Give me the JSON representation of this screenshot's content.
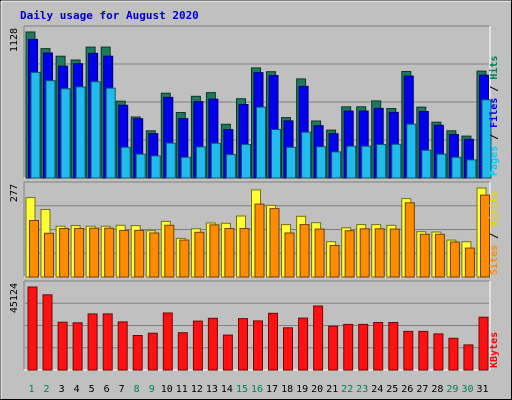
{
  "chart_data": {
    "type": "bar",
    "title": "Daily usage for August 2020",
    "days": [
      "1",
      "2",
      "3",
      "4",
      "5",
      "6",
      "7",
      "8",
      "9",
      "10",
      "11",
      "12",
      "13",
      "14",
      "15",
      "16",
      "17",
      "18",
      "19",
      "20",
      "21",
      "22",
      "23",
      "24",
      "25",
      "26",
      "27",
      "28",
      "29",
      "30",
      "31"
    ],
    "weekend_days": [
      "1",
      "2",
      "8",
      "9",
      "15",
      "16",
      "22",
      "23",
      "29",
      "30"
    ],
    "panels": [
      {
        "name": "hits-files-pages",
        "ymax_label": "1128",
        "ymax": 1128,
        "legend": [
          {
            "label": "Hits",
            "color": "#00805c"
          },
          {
            "label": "Files",
            "color": "#0000ff"
          },
          {
            "label": "Pages",
            "color": "#00ccff"
          }
        ],
        "series": [
          {
            "name": "Hits",
            "color": "#1e7a5c",
            "values": [
              1128,
              1000,
              941,
              912,
              1011,
              1011,
              593,
              471,
              365,
              655,
              506,
              631,
              660,
              415,
              613,
              851,
              821,
              467,
              766,
              440,
              370,
              550,
              550,
              596,
              537,
              823,
              548,
              431,
              365,
              324,
              826
            ]
          },
          {
            "name": "Files",
            "color": "#0000ee",
            "values": [
              1071,
              966,
              864,
              883,
              963,
              941,
              562,
              458,
              343,
              623,
              459,
              590,
              609,
              374,
              568,
              814,
              792,
              441,
              708,
              404,
              342,
              517,
              517,
              538,
              507,
              787,
              514,
              407,
              336,
              299,
              794
            ]
          },
          {
            "name": "Pages",
            "color": "#22bbee",
            "values": [
              816,
              752,
              690,
              704,
              744,
              694,
              237,
              184,
              171,
              270,
              160,
              240,
              268,
              181,
              259,
              547,
              375,
              237,
              354,
              242,
              202,
              246,
              246,
              259,
              260,
              416,
              214,
              184,
              160,
              140,
              604
            ]
          }
        ]
      },
      {
        "name": "visits-sites",
        "ymax_label": "277",
        "ymax": 277,
        "legend": [
          {
            "label": "Visits",
            "color": "#e6d800"
          },
          {
            "label": "Sites",
            "color": "#ff8c00"
          }
        ],
        "series": [
          {
            "name": "Visits",
            "color": "#ffff33",
            "values": [
              247,
              210,
              158,
              160,
              158,
              158,
              161,
              160,
              144,
              173,
              120,
              150,
              168,
              167,
              190,
              271,
              223,
              163,
              189,
              169,
              110,
              153,
              163,
              163,
              161,
              244,
              141,
              140,
              115,
              110,
              277
            ]
          },
          {
            "name": "Sites",
            "color": "#ff8c00",
            "values": [
              176,
              136,
              151,
              151,
              152,
              152,
              145,
              145,
              137,
              161,
              115,
              139,
              162,
              151,
              151,
              227,
              213,
              137,
              163,
              149,
              98,
              144,
              150,
              150,
              149,
              231,
              133,
              133,
              109,
              90,
              255
            ]
          }
        ]
      },
      {
        "name": "kbytes",
        "ymax_label": "45124",
        "ymax": 45124,
        "legend": [
          {
            "label": "KBytes",
            "color": "#ff0000"
          }
        ],
        "series": [
          {
            "name": "KBytes",
            "color": "#ff1111",
            "values": [
              45124,
              40875,
              25993,
              25682,
              30474,
              30474,
              26133,
              18770,
              20023,
              31004,
              20285,
              26580,
              28083,
              18962,
              27930,
              26693,
              30848,
              22931,
              28235,
              34791,
              23829,
              24769,
              24769,
              25813,
              25813,
              20962,
              20962,
              19607,
              17256,
              13659,
              28706
            ]
          }
        ]
      }
    ]
  }
}
